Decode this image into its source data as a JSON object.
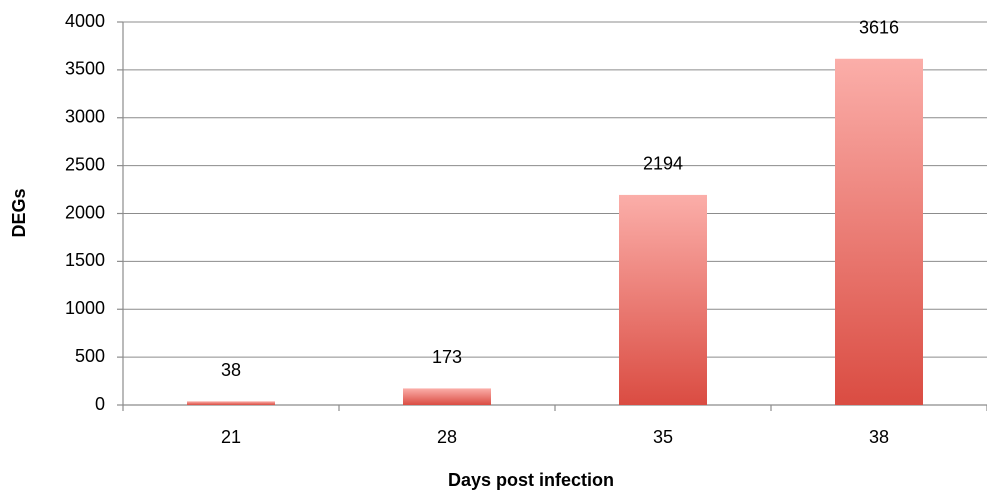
{
  "chart_data": {
    "type": "bar",
    "x_label": "Days post infection",
    "y_label": "DEGs",
    "categories": [
      "21",
      "28",
      "35",
      "38"
    ],
    "values": [
      38,
      173,
      2194,
      3616
    ],
    "ylim": [
      0,
      4000
    ],
    "yticks": [
      0,
      500,
      1000,
      1500,
      2000,
      2500,
      3000,
      3500,
      4000
    ],
    "grid": true
  }
}
